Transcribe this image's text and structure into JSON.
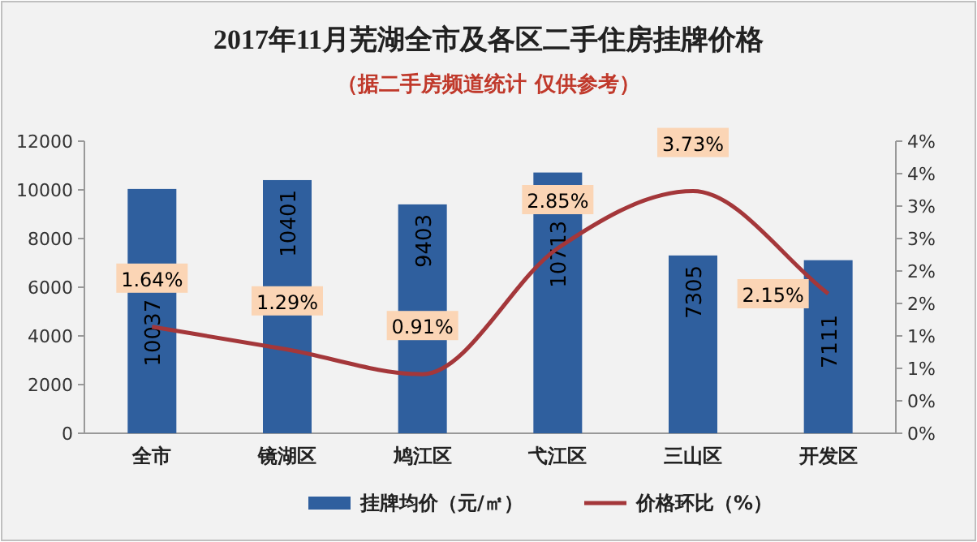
{
  "chart_data": {
    "type": "bar",
    "title": "2017年11月芜湖全市及各区二手住房挂牌价格",
    "subtitle": "（据二手房频道统计 仅供参考）",
    "categories": [
      "全市",
      "镜湖区",
      "鸠江区",
      "弋江区",
      "三山区",
      "开发区"
    ],
    "series": [
      {
        "name": "挂牌均价（元/㎡）",
        "color": "#2f5f9e",
        "values": [
          10037,
          10401,
          9403,
          10713,
          7305,
          7111
        ]
      },
      {
        "name": "价格环比（%）",
        "type": "line",
        "axis": "y2",
        "color": "#a4373a",
        "values": [
          1.64,
          1.29,
          0.91,
          2.85,
          3.73,
          2.15
        ],
        "value_labels": [
          "1.64%",
          "1.29%",
          "0.91%",
          "2.85%",
          "3.73%",
          "2.15%"
        ]
      }
    ],
    "data_labels": true,
    "ylim": [
      0,
      12000
    ],
    "yticks": [
      0,
      2000,
      4000,
      6000,
      8000,
      10000,
      12000
    ],
    "y2lim": [
      0,
      4.5
    ],
    "y2ticks": [
      {
        "value": 0,
        "label": "0%"
      },
      {
        "value": 0.5,
        "label": "0%"
      },
      {
        "value": 1,
        "label": "1%"
      },
      {
        "value": 1.5,
        "label": "1%"
      },
      {
        "value": 2,
        "label": "2%"
      },
      {
        "value": 2.5,
        "label": "2%"
      },
      {
        "value": 3,
        "label": "3%"
      },
      {
        "value": 3.5,
        "label": "3%"
      },
      {
        "value": 4,
        "label": "4%"
      },
      {
        "value": 4.5,
        "label": "4%"
      }
    ],
    "legend": "bottom"
  }
}
